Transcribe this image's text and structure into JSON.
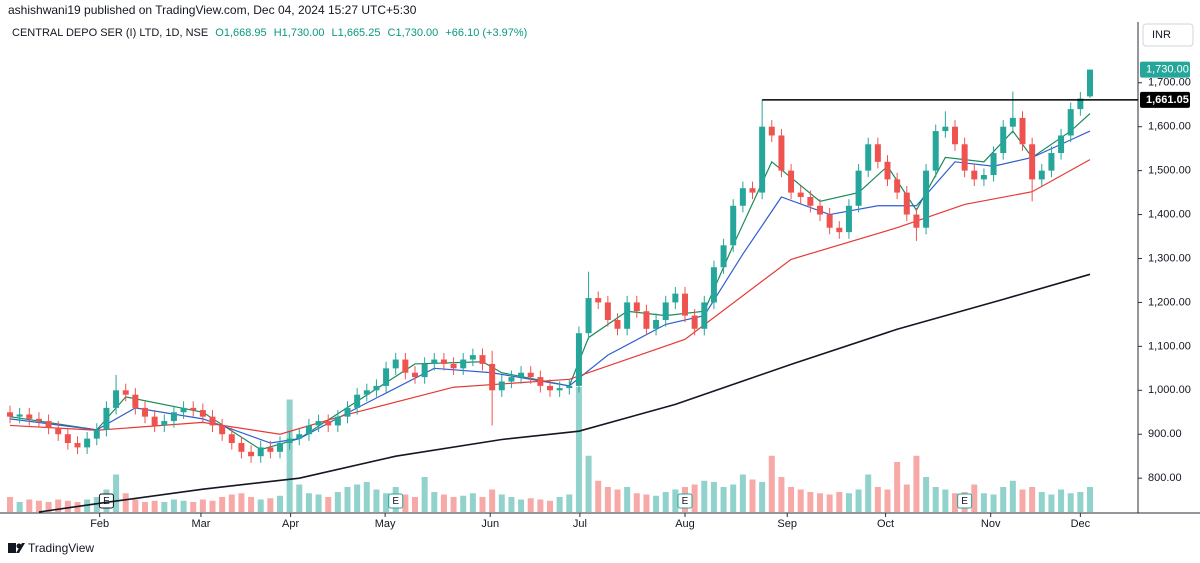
{
  "chart_data": {
    "type": "candlestick",
    "header": "ashishwani19 published on TradingView.com, Dec 04, 2024 15:27 UTC+5:30",
    "legend": {
      "symbol": "CENTRAL DEPO SER (I) LTD, 1D, NSE",
      "items": [
        "O1,668.95",
        "H1,730.00",
        "L1,665.25",
        "C1,730.00",
        "+66.10 (+3.97%)"
      ]
    },
    "currency": "INR",
    "brand": "TradingView",
    "up_color": "#26a69a",
    "down_color": "#ef5350",
    "open": [
      950,
      940,
      945,
      935,
      930,
      915,
      900,
      880,
      870,
      890,
      910,
      960,
      1000,
      990,
      960,
      940,
      920,
      930,
      950,
      960,
      955,
      940,
      920,
      900,
      880,
      860,
      850,
      870,
      860,
      880,
      890,
      900,
      920,
      930,
      920,
      940,
      960,
      990,
      1000,
      1010,
      1050,
      1070,
      1040,
      1030,
      1060,
      1070,
      1060,
      1050,
      1070,
      1080,
      1060,
      1000,
      1020,
      1030,
      1040,
      1030,
      1010,
      1000,
      1005,
      1010,
      1130,
      1210,
      1200,
      1160,
      1140,
      1200,
      1180,
      1140,
      1160,
      1200,
      1220,
      1170,
      1140,
      1200,
      1280,
      1330,
      1420,
      1460,
      1450,
      1600,
      1580,
      1500,
      1450,
      1440,
      1420,
      1400,
      1370,
      1360,
      1420,
      1500,
      1560,
      1520,
      1480,
      1450,
      1400,
      1370,
      1500,
      1590,
      1600,
      1560,
      1500,
      1480,
      1490,
      1540,
      1600,
      1620,
      1560,
      1480,
      1500,
      1540,
      1580,
      1640,
      1668.95
    ],
    "high": [
      965,
      960,
      960,
      950,
      945,
      930,
      915,
      895,
      905,
      925,
      975,
      1035,
      1015,
      1005,
      975,
      955,
      945,
      965,
      975,
      975,
      970,
      955,
      935,
      915,
      895,
      875,
      885,
      885,
      895,
      905,
      915,
      935,
      945,
      945,
      955,
      975,
      1005,
      1015,
      1025,
      1065,
      1085,
      1085,
      1055,
      1075,
      1085,
      1085,
      1075,
      1085,
      1095,
      1095,
      1090,
      1035,
      1045,
      1055,
      1055,
      1045,
      1025,
      1020,
      1025,
      1145,
      1270,
      1225,
      1215,
      1175,
      1215,
      1215,
      1195,
      1175,
      1215,
      1235,
      1235,
      1185,
      1215,
      1295,
      1345,
      1435,
      1475,
      1475,
      1661.05,
      1615,
      1595,
      1515,
      1465,
      1455,
      1435,
      1415,
      1385,
      1435,
      1515,
      1575,
      1575,
      1535,
      1495,
      1465,
      1415,
      1515,
      1605,
      1635,
      1615,
      1575,
      1515,
      1505,
      1555,
      1615,
      1680,
      1635,
      1575,
      1515,
      1555,
      1595,
      1655,
      1679,
      1730
    ],
    "low": [
      925,
      925,
      920,
      915,
      900,
      885,
      865,
      855,
      855,
      875,
      895,
      945,
      975,
      945,
      925,
      905,
      905,
      915,
      935,
      940,
      925,
      905,
      885,
      865,
      845,
      835,
      835,
      845,
      845,
      865,
      875,
      885,
      905,
      905,
      905,
      925,
      945,
      975,
      985,
      995,
      1035,
      1025,
      1015,
      1015,
      1045,
      1045,
      1035,
      1035,
      1055,
      1045,
      920,
      985,
      1005,
      1015,
      1015,
      995,
      985,
      985,
      990,
      995,
      1115,
      1185,
      1145,
      1125,
      1125,
      1165,
      1125,
      1125,
      1145,
      1185,
      1155,
      1125,
      1125,
      1185,
      1265,
      1315,
      1405,
      1435,
      1435,
      1565,
      1485,
      1435,
      1425,
      1405,
      1385,
      1355,
      1345,
      1345,
      1405,
      1485,
      1505,
      1465,
      1435,
      1385,
      1340,
      1355,
      1485,
      1575,
      1545,
      1485,
      1465,
      1465,
      1475,
      1525,
      1585,
      1545,
      1430,
      1465,
      1485,
      1525,
      1565,
      1625,
      1665.25
    ],
    "close": [
      940,
      945,
      935,
      930,
      915,
      900,
      880,
      870,
      890,
      910,
      960,
      1000,
      990,
      960,
      940,
      920,
      930,
      950,
      960,
      955,
      940,
      920,
      900,
      880,
      860,
      850,
      870,
      860,
      880,
      890,
      900,
      920,
      930,
      920,
      940,
      960,
      990,
      1000,
      1010,
      1050,
      1070,
      1040,
      1030,
      1060,
      1070,
      1060,
      1050,
      1070,
      1080,
      1060,
      1000,
      1020,
      1030,
      1040,
      1030,
      1010,
      1000,
      1005,
      1010,
      1130,
      1210,
      1200,
      1160,
      1140,
      1200,
      1180,
      1140,
      1160,
      1200,
      1220,
      1170,
      1140,
      1200,
      1280,
      1330,
      1420,
      1460,
      1450,
      1600,
      1580,
      1500,
      1450,
      1440,
      1420,
      1400,
      1370,
      1360,
      1420,
      1500,
      1560,
      1520,
      1480,
      1450,
      1400,
      1370,
      1500,
      1590,
      1600,
      1560,
      1500,
      1480,
      1490,
      1540,
      1600,
      1620,
      1560,
      1480,
      1500,
      1540,
      1580,
      1640,
      1664,
      1730
    ],
    "close_last_label": "1,730.00",
    "volume": [
      12,
      8,
      10,
      9,
      8,
      10,
      9,
      8,
      10,
      12,
      18,
      30,
      15,
      10,
      8,
      9,
      8,
      10,
      9,
      8,
      10,
      9,
      12,
      14,
      15,
      12,
      10,
      11,
      13,
      90,
      22,
      15,
      14,
      12,
      16,
      20,
      22,
      24,
      18,
      15,
      20,
      14,
      12,
      28,
      16,
      14,
      12,
      13,
      15,
      12,
      18,
      14,
      12,
      10,
      11,
      10,
      9,
      12,
      14,
      100,
      45,
      25,
      20,
      18,
      20,
      15,
      14,
      13,
      16,
      18,
      20,
      22,
      25,
      24,
      20,
      22,
      30,
      26,
      24,
      45,
      28,
      20,
      18,
      16,
      15,
      14,
      16,
      15,
      18,
      30,
      20,
      18,
      40,
      22,
      45,
      28,
      20,
      18,
      15,
      16,
      22,
      15,
      14,
      20,
      25,
      18,
      20,
      16,
      14,
      18,
      15,
      16,
      20
    ],
    "volume_lim": [
      0,
      100
    ],
    "moving_averages": [
      {
        "color": "#1b8a5a",
        "x": [
          0,
          9,
          12,
          20,
          26,
          30,
          36,
          42,
          49,
          51,
          58,
          60,
          64,
          68,
          72,
          75,
          79,
          84,
          88,
          91,
          94,
          97,
          101,
          104,
          106,
          110,
          112
        ],
        "values": [
          940,
          910,
          985,
          950,
          865,
          890,
          975,
          1060,
          1065,
          1040,
          1010,
          1120,
          1180,
          1170,
          1180,
          1330,
          1520,
          1430,
          1450,
          1510,
          1410,
          1530,
          1520,
          1590,
          1530,
          1590,
          1630
        ]
      },
      {
        "color": "#2f5fd0",
        "x": [
          0,
          9,
          13,
          20,
          27,
          30,
          36,
          44,
          50,
          58,
          62,
          68,
          72,
          76,
          80,
          85,
          90,
          94,
          98,
          102,
          106,
          110,
          112
        ],
        "values": [
          935,
          910,
          960,
          935,
          880,
          890,
          960,
          1050,
          1040,
          1010,
          1080,
          1150,
          1170,
          1310,
          1440,
          1400,
          1420,
          1420,
          1520,
          1510,
          1530,
          1570,
          1590
        ]
      },
      {
        "color": "#e53935",
        "x": [
          0,
          9,
          20,
          28,
          35,
          46,
          58,
          70,
          81,
          92,
          99,
          106,
          112
        ],
        "values": [
          920,
          909,
          927,
          900,
          945,
          1007,
          1025,
          1116,
          1298,
          1370,
          1423,
          1452,
          1525
        ]
      },
      {
        "color": "#131722",
        "x": [
          3,
          10,
          20,
          30,
          40,
          51,
          59,
          69,
          81,
          92,
          103,
          112
        ],
        "values": [
          723,
          745,
          775,
          800,
          850,
          888,
          907,
          968,
          1059,
          1139,
          1207,
          1264
        ]
      }
    ],
    "level": {
      "value": 1661.05,
      "label": "1,661.05"
    },
    "events": [
      {
        "label": "E",
        "index": 10
      },
      {
        "label": "E",
        "index": 40
      },
      {
        "label": "E",
        "index": 70
      },
      {
        "label": "E",
        "index": 99
      }
    ],
    "ylim": [
      723,
      1770
    ],
    "yticks": [
      {
        "value": 800,
        "label": "800.00"
      },
      {
        "value": 900,
        "label": "900.00"
      },
      {
        "value": 1000,
        "label": "1,000.00"
      },
      {
        "value": 1100,
        "label": "1,100.00"
      },
      {
        "value": 1200,
        "label": "1,200.00"
      },
      {
        "value": 1300,
        "label": "1,300.00"
      },
      {
        "value": 1400,
        "label": "1,400.00"
      },
      {
        "value": 1500,
        "label": "1,500.00"
      },
      {
        "value": 1600,
        "label": "1,600.00"
      },
      {
        "value": 1700,
        "label": "1,700.00"
      }
    ],
    "xticks": [
      {
        "value": 9.3,
        "label": "Feb"
      },
      {
        "value": 19.8,
        "label": "Mar"
      },
      {
        "value": 29.1,
        "label": "Apr"
      },
      {
        "value": 38.9,
        "label": "May"
      },
      {
        "value": 49.8,
        "label": "Jun"
      },
      {
        "value": 59.1,
        "label": "Jul"
      },
      {
        "value": 70,
        "label": "Aug"
      },
      {
        "value": 80.6,
        "label": "Sep"
      },
      {
        "value": 90.8,
        "label": "Oct"
      },
      {
        "value": 101.7,
        "label": "Nov"
      },
      {
        "value": 111,
        "label": "Dec"
      }
    ]
  }
}
